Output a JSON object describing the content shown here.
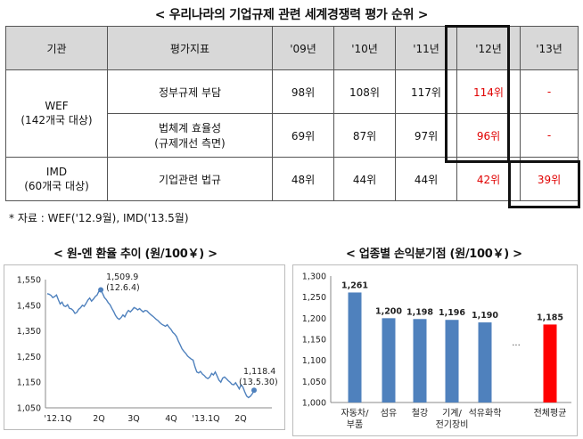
{
  "top_title": "< 우리나라의 기업규제 관련 세계경쟁력 평가 순위 >",
  "table": {
    "headers": [
      "기관",
      "평가지표",
      "'09년",
      "'10년",
      "'11년",
      "'12년",
      "'13년"
    ],
    "groups": [
      {
        "org_line1": "WEF",
        "org_line2": "(142개국 대상)"
      },
      {
        "org_line1": "IMD",
        "org_line2": "(60개국 대상)"
      }
    ],
    "rows": [
      {
        "indicator": "정부규제 부담",
        "indicator2": "",
        "y09": "98위",
        "y10": "108위",
        "y11": "117위",
        "y12": "114위",
        "y13": "-"
      },
      {
        "indicator": "법체계 효율성",
        "indicator2": "(규제개선 측면)",
        "y09": "69위",
        "y10": "87위",
        "y11": "97위",
        "y12": "96위",
        "y13": "-"
      },
      {
        "indicator": "기업관련 법규",
        "indicator2": "",
        "y09": "48위",
        "y10": "44위",
        "y11": "44위",
        "y12": "42위",
        "y13": "39위"
      }
    ],
    "note": "* 자료 : WEF('12.9월), IMD('13.5월)"
  },
  "colors": {
    "highlight": "#e00000",
    "line": "#4f81bd",
    "bar": "#4f81bd",
    "bar_highlight": "#ff0000"
  },
  "chart_data": [
    {
      "type": "line",
      "title": "< 원-엔 환율 추이 (원/100￥) >",
      "ylim": [
        1050,
        1550
      ],
      "yticks": [
        1050,
        1150,
        1250,
        1350,
        1450,
        1550
      ],
      "ytick_labels": [
        "1,050",
        "1,150",
        "1,250",
        "1,350",
        "1,450",
        "1,550"
      ],
      "xtick_labels": [
        "'12.1Q",
        "2Q",
        "3Q",
        "4Q",
        "'13.1Q",
        "2Q"
      ],
      "grid": false,
      "series": [
        {
          "values": [
            1495,
            1493,
            1489,
            1480,
            1484,
            1490,
            1472,
            1455,
            1462,
            1448,
            1445,
            1452,
            1438,
            1436,
            1430,
            1418,
            1422,
            1434,
            1440,
            1450,
            1446,
            1457,
            1470,
            1478,
            1466,
            1474,
            1484,
            1490,
            1505,
            1509.9,
            1496,
            1480,
            1472,
            1460,
            1452,
            1438,
            1425,
            1410,
            1400,
            1395,
            1402,
            1412,
            1405,
            1420,
            1430,
            1424,
            1432,
            1441,
            1438,
            1432,
            1437,
            1430,
            1424,
            1430,
            1428,
            1421,
            1414,
            1408,
            1402,
            1395,
            1390,
            1382,
            1376,
            1372,
            1368,
            1374,
            1364,
            1356,
            1344,
            1338,
            1328,
            1310,
            1296,
            1280,
            1270,
            1262,
            1252,
            1246,
            1240,
            1236,
            1210,
            1190,
            1186,
            1192,
            1182,
            1176,
            1168,
            1164,
            1170,
            1184,
            1178,
            1190,
            1174,
            1158,
            1150,
            1166,
            1170,
            1164,
            1156,
            1150,
            1142,
            1140,
            1148,
            1136,
            1124,
            1140,
            1130,
            1112,
            1096,
            1090,
            1095,
            1104,
            1118.4
          ]
        }
      ],
      "annotations": [
        {
          "value": "1,509.9",
          "date": "(12.6.4)"
        },
        {
          "value": "1,118.4",
          "date": "(13.5.30)"
        }
      ]
    },
    {
      "type": "bar",
      "title": "< 업종별 손익분기점 (원/100￥) >",
      "ylim": [
        1000,
        1300
      ],
      "yticks": [
        1000,
        1050,
        1100,
        1150,
        1200,
        1250,
        1300
      ],
      "ytick_labels": [
        "1,000",
        "1,050",
        "1,100",
        "1,150",
        "1,200",
        "1,250",
        "1,300"
      ],
      "categories": [
        "자동차/부품",
        "섬유",
        "철강",
        "기계/전기장비",
        "석유화학",
        "…",
        "전체평균"
      ],
      "category_lines": [
        [
          "자동차/",
          "부품"
        ],
        [
          "섬유"
        ],
        [
          "철강"
        ],
        [
          "기계/",
          "전기장비"
        ],
        [
          "석유화학"
        ],
        [
          ""
        ],
        [
          "전체평균"
        ]
      ],
      "values": [
        1261,
        1200,
        1198,
        1196,
        1190,
        null,
        1185
      ],
      "value_labels": [
        "1,261",
        "1,200",
        "1,198",
        "1,196",
        "1,190",
        "",
        "1,185"
      ],
      "ellipsis": "···"
    }
  ]
}
